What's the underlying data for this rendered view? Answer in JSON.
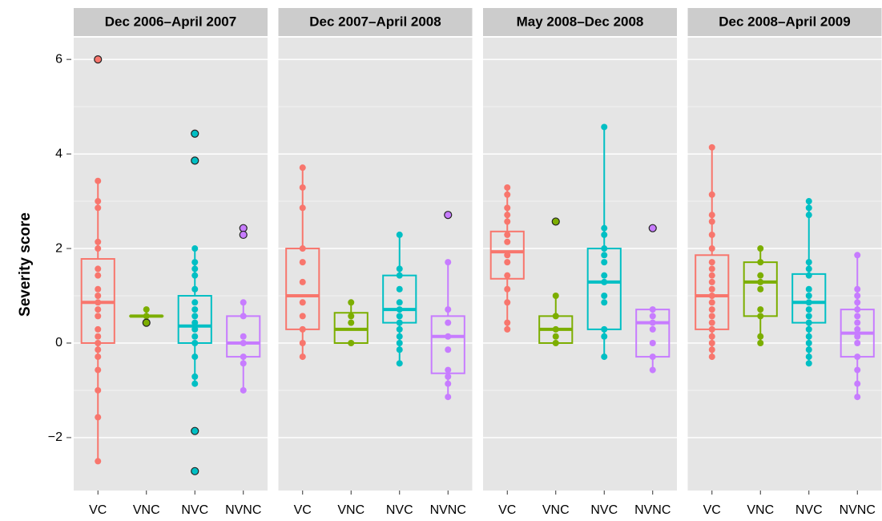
{
  "chart_data": [
    {
      "type": "box",
      "title": "Dec 2006–April 2007",
      "ylabel": "Severity score",
      "categories": [
        "VC",
        "VNC",
        "NVC",
        "NVNC"
      ],
      "colors": [
        "#F8766D",
        "#7CAE00",
        "#00BFC4",
        "#C77CFF"
      ],
      "ylim": [
        -3.12,
        6.46
      ],
      "yticks": [
        {
          "value": -2,
          "label": "−2"
        },
        0,
        2,
        4,
        6
      ],
      "boxes": [
        {
          "whislo": -2.5,
          "q1": 0,
          "median": 0.86,
          "q3": 1.78,
          "whishi": 3.43,
          "outliers": [
            6.0
          ],
          "points": [
            3.43,
            3.0,
            2.86,
            2.14,
            2.0,
            1.57,
            1.43,
            1.14,
            1.0,
            0.86,
            0.71,
            0.57,
            0.29,
            0.14,
            0,
            -0.14,
            -0.29,
            -0.57,
            -1.0,
            -1.57,
            -2.5
          ]
        },
        {
          "whislo": 0.43,
          "q1": 0.57,
          "median": 0.57,
          "q3": 0.57,
          "whishi": 0.71,
          "outliers": [
            0.43
          ],
          "points": [
            0.71,
            0.57
          ]
        },
        {
          "whislo": -0.86,
          "q1": 0,
          "median": 0.36,
          "q3": 1.0,
          "whishi": 2.0,
          "outliers": [
            4.43,
            3.86,
            -1.86,
            -2.71
          ],
          "points": [
            2.0,
            1.71,
            1.57,
            1.43,
            1.14,
            0.86,
            0.71,
            0.57,
            0.43,
            0.29,
            0.14,
            0,
            -0.29,
            -0.71,
            -0.86
          ]
        },
        {
          "whislo": -1.0,
          "q1": -0.29,
          "median": 0,
          "q3": 0.57,
          "whishi": 0.86,
          "outliers": [
            2.43,
            2.29
          ],
          "points": [
            0.86,
            0.57,
            0.14,
            0,
            -0.29,
            -0.43,
            -1.0
          ]
        }
      ]
    },
    {
      "type": "box",
      "title": "Dec 2007–April 2008",
      "categories": [
        "VC",
        "VNC",
        "NVC",
        "NVNC"
      ],
      "colors": [
        "#F8766D",
        "#7CAE00",
        "#00BFC4",
        "#C77CFF"
      ],
      "ylim": [
        -3.12,
        6.46
      ],
      "yticks": [
        -2,
        0,
        2,
        4,
        6
      ],
      "boxes": [
        {
          "whislo": -0.29,
          "q1": 0.29,
          "median": 1.0,
          "q3": 2.0,
          "whishi": 3.71,
          "outliers": [],
          "points": [
            3.71,
            3.29,
            2.86,
            2.0,
            1.71,
            1.29,
            0.86,
            0.57,
            0.29,
            0,
            -0.29
          ]
        },
        {
          "whislo": 0,
          "q1": 0,
          "median": 0.29,
          "q3": 0.64,
          "whishi": 0.86,
          "outliers": [],
          "points": [
            0.86,
            0.57,
            0.43,
            0
          ]
        },
        {
          "whislo": -0.43,
          "q1": 0.43,
          "median": 0.71,
          "q3": 1.43,
          "whishi": 2.29,
          "outliers": [],
          "points": [
            2.29,
            1.57,
            1.43,
            1.14,
            0.86,
            0.71,
            0.57,
            0.43,
            0.29,
            0.14,
            0,
            -0.14,
            -0.43
          ]
        },
        {
          "whislo": -1.14,
          "q1": -0.64,
          "median": 0.14,
          "q3": 0.57,
          "whishi": 1.71,
          "outliers": [
            2.71
          ],
          "points": [
            1.71,
            0.71,
            0.43,
            0.14,
            -0.14,
            -0.57,
            -0.71,
            -0.86,
            -1.14
          ]
        }
      ]
    },
    {
      "type": "box",
      "title": "May 2008–Dec 2008",
      "categories": [
        "VC",
        "VNC",
        "NVC",
        "NVNC"
      ],
      "colors": [
        "#F8766D",
        "#7CAE00",
        "#00BFC4",
        "#C77CFF"
      ],
      "ylim": [
        -3.12,
        6.46
      ],
      "yticks": [
        -2,
        0,
        2,
        4,
        6
      ],
      "boxes": [
        {
          "whislo": 0.29,
          "q1": 1.36,
          "median": 1.93,
          "q3": 2.36,
          "whishi": 3.29,
          "outliers": [],
          "points": [
            3.29,
            3.14,
            2.86,
            2.71,
            2.57,
            2.29,
            2.14,
            1.86,
            1.71,
            1.43,
            1.14,
            0.86,
            0.43,
            0.29
          ]
        },
        {
          "whislo": 0,
          "q1": 0,
          "median": 0.29,
          "q3": 0.57,
          "whishi": 1.0,
          "outliers": [
            2.57
          ],
          "points": [
            1.0,
            0.57,
            0.29,
            0.14,
            0
          ]
        },
        {
          "whislo": -0.29,
          "q1": 0.29,
          "median": 1.29,
          "q3": 2.0,
          "whishi": 4.57,
          "outliers": [],
          "points": [
            4.57,
            2.43,
            2.29,
            2.0,
            1.86,
            1.71,
            1.43,
            1.29,
            1.0,
            0.86,
            0.29,
            0.14,
            -0.29
          ]
        },
        {
          "whislo": -0.57,
          "q1": -0.29,
          "median": 0.43,
          "q3": 0.71,
          "whishi": 0.71,
          "outliers": [
            2.43
          ],
          "points": [
            0.71,
            0.57,
            0.43,
            0.29,
            0,
            -0.29,
            -0.57
          ]
        }
      ]
    },
    {
      "type": "box",
      "title": "Dec 2008–April 2009",
      "categories": [
        "VC",
        "VNC",
        "NVC",
        "NVNC"
      ],
      "colors": [
        "#F8766D",
        "#7CAE00",
        "#00BFC4",
        "#C77CFF"
      ],
      "ylim": [
        -3.12,
        6.46
      ],
      "yticks": [
        -2,
        0,
        2,
        4,
        6
      ],
      "boxes": [
        {
          "whislo": -0.29,
          "q1": 0.29,
          "median": 1.0,
          "q3": 1.86,
          "whishi": 4.14,
          "outliers": [],
          "points": [
            4.14,
            3.14,
            2.71,
            2.57,
            2.29,
            2.0,
            1.71,
            1.57,
            1.43,
            1.29,
            1.14,
            1.0,
            0.86,
            0.71,
            0.57,
            0.43,
            0.29,
            0.14,
            0,
            -0.14,
            -0.29
          ]
        },
        {
          "whislo": 0,
          "q1": 0.57,
          "median": 1.29,
          "q3": 1.71,
          "whishi": 2.0,
          "outliers": [],
          "points": [
            2.0,
            1.71,
            1.43,
            1.29,
            1.14,
            0.71,
            0.57,
            0.14,
            0
          ]
        },
        {
          "whislo": -0.43,
          "q1": 0.43,
          "median": 0.86,
          "q3": 1.46,
          "whishi": 3.0,
          "outliers": [],
          "points": [
            3.0,
            2.86,
            2.71,
            1.71,
            1.57,
            1.43,
            1.14,
            1.0,
            0.86,
            0.71,
            0.57,
            0.43,
            0.29,
            0.14,
            0,
            -0.14,
            -0.29,
            -0.43
          ]
        },
        {
          "whislo": -1.14,
          "q1": -0.29,
          "median": 0.21,
          "q3": 0.71,
          "whishi": 1.86,
          "outliers": [],
          "points": [
            1.86,
            1.14,
            1.0,
            0.86,
            0.71,
            0.57,
            0.43,
            0.29,
            0.14,
            0,
            -0.29,
            -0.57,
            -0.86,
            -1.14
          ]
        }
      ]
    }
  ]
}
